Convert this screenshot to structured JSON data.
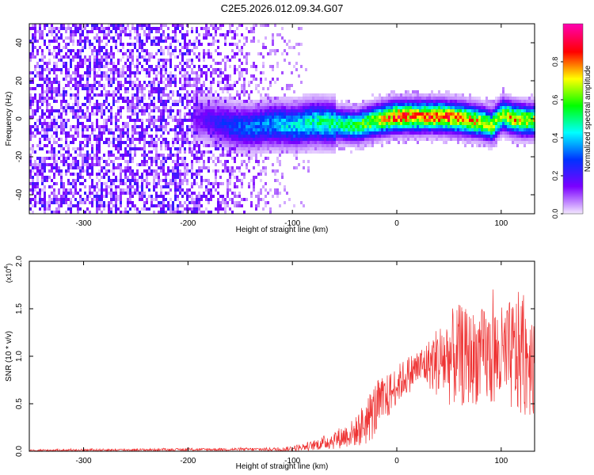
{
  "title": "C2E5.2026.012.09.34.G07",
  "chart_data": [
    {
      "type": "heatmap",
      "title": "C2E5.2026.012.09.34.G07",
      "xlabel": "Height of straight line (km)",
      "ylabel": "Frequency (Hz)",
      "xlim": [
        -352,
        132
      ],
      "ylim": [
        -50,
        50
      ],
      "x_ticks": [
        -300,
        -200,
        -100,
        0,
        100
      ],
      "x_tick_labels": [
        "-300",
        "-200",
        "-100",
        "0",
        "100"
      ],
      "y_ticks": [
        -40,
        -20,
        0,
        20,
        40
      ],
      "y_tick_labels": [
        "-40",
        "-20",
        "0",
        "20",
        "40"
      ],
      "colorbar": {
        "label": "Normalized spectral amplitude",
        "range": [
          0,
          1
        ],
        "ticks": [
          0.0,
          0.2,
          0.4,
          0.6,
          0.8
        ],
        "tick_labels": [
          "0.0",
          "0.2",
          "0.4",
          "0.6",
          "0.8"
        ],
        "colors": [
          "#f2e6ff",
          "#7b00ff",
          "#0033ff",
          "#00ffff",
          "#00ff00",
          "#ffff00",
          "#ff0000",
          "#ff00aa"
        ]
      },
      "noise_region": {
        "x_range": [
          -352,
          -85
        ],
        "freq_range": [
          -50,
          50
        ],
        "amplitude": 0.12
      },
      "signal_track": {
        "x": [
          -195,
          -180,
          -160,
          -140,
          -120,
          -100,
          -80,
          -60,
          -40,
          -20,
          0,
          20,
          40,
          60,
          80,
          90,
          100,
          110,
          120,
          132
        ],
        "freq_hz": [
          1,
          0,
          -3,
          -4,
          -2,
          -3,
          -1,
          -2,
          -3,
          0,
          2,
          2,
          2,
          1,
          -1,
          -3,
          3,
          1,
          0,
          0
        ],
        "amplitude": [
          0.15,
          0.2,
          0.3,
          0.35,
          0.4,
          0.45,
          0.5,
          0.55,
          0.6,
          0.75,
          0.9,
          0.85,
          0.9,
          0.85,
          0.75,
          0.7,
          0.7,
          0.8,
          0.75,
          0.7
        ]
      }
    },
    {
      "type": "line",
      "title": "",
      "xlabel": "Height of straight line (km)",
      "ylabel": "SNR (10 * v/v)",
      "scale_label": "(x10",
      "scale_exponent": "4",
      "scale_close": ")",
      "xlim": [
        -352,
        132
      ],
      "ylim": [
        0,
        2.0
      ],
      "x_ticks": [
        -300,
        -200,
        -100,
        0,
        100
      ],
      "x_tick_labels": [
        "-300",
        "-200",
        "-100",
        "0",
        "100"
      ],
      "y_ticks": [
        0.0,
        0.5,
        1.0,
        1.5,
        2.0
      ],
      "y_tick_labels": [
        "0.0",
        "0.5",
        "1.0",
        "1.5",
        "2.0"
      ],
      "series": [
        {
          "name": "SNR",
          "color": "#ee3333",
          "envelope_x": [
            -352,
            -150,
            -110,
            -100,
            -80,
            -60,
            -40,
            -30,
            -20,
            -10,
            0,
            10,
            20,
            30,
            40,
            50,
            60,
            70,
            80,
            90,
            100,
            110,
            120,
            132
          ],
          "mean": [
            0.01,
            0.02,
            0.02,
            0.03,
            0.06,
            0.12,
            0.2,
            0.3,
            0.45,
            0.55,
            0.7,
            0.8,
            0.88,
            0.92,
            0.95,
            0.98,
            1.0,
            0.98,
            1.0,
            1.0,
            0.98,
            1.0,
            1.02,
            1.0
          ],
          "spread": [
            0.01,
            0.015,
            0.02,
            0.03,
            0.05,
            0.1,
            0.15,
            0.25,
            0.3,
            0.25,
            0.2,
            0.2,
            0.2,
            0.25,
            0.4,
            0.5,
            0.55,
            0.5,
            0.5,
            0.55,
            0.55,
            0.6,
            0.7,
            0.6
          ]
        }
      ]
    }
  ]
}
